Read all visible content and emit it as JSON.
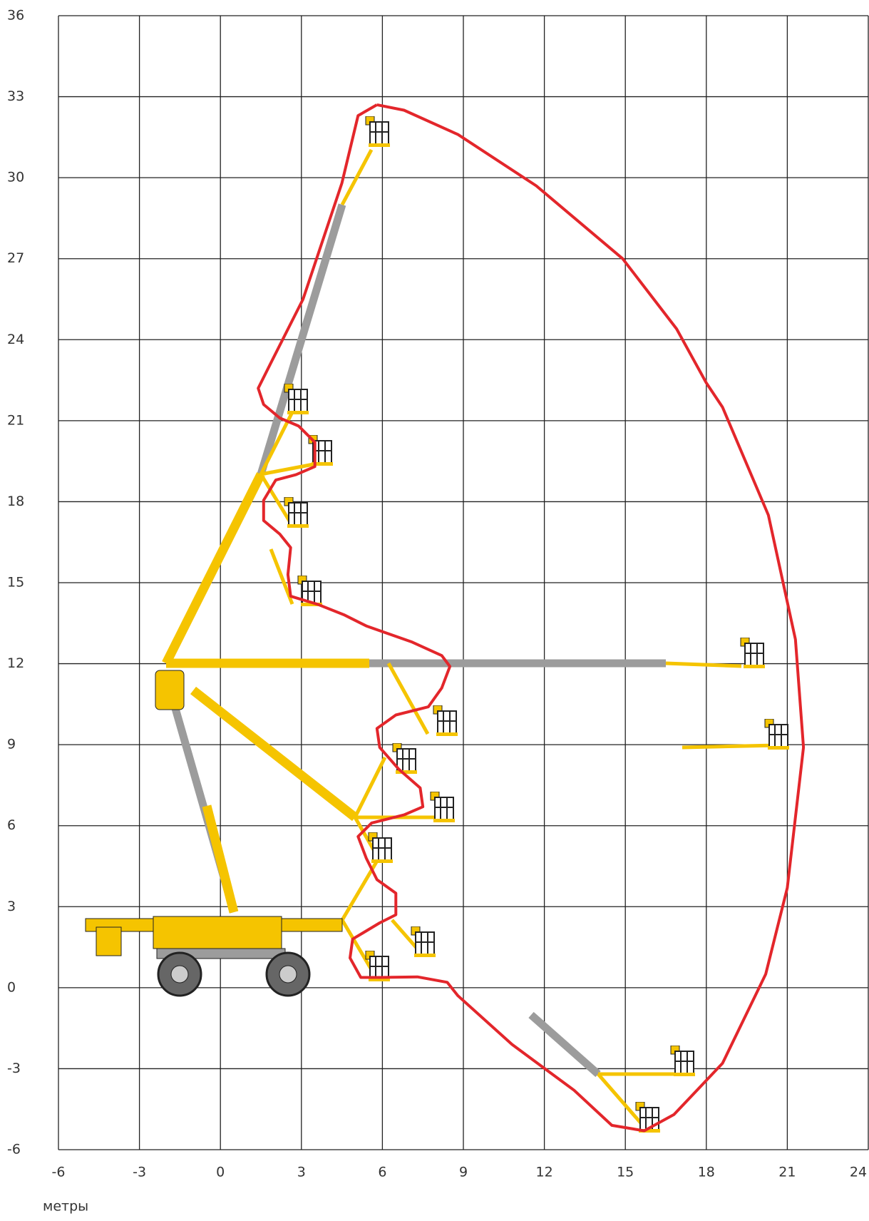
{
  "chart_data": {
    "type": "line",
    "xlabel": "метры",
    "x": [
      5.8,
      5.1,
      4.5,
      3.06,
      1.9,
      1.4,
      1.6,
      2.2,
      2.9,
      3.5,
      3.5,
      2.8,
      2.05,
      1.6,
      1.6,
      2.2,
      2.6,
      2.5,
      2.6,
      3.6,
      4.6,
      5.4,
      7.1,
      8.2,
      8.5,
      8.2,
      7.7,
      6.5,
      5.8,
      5.9,
      6.6,
      7.4,
      7.5,
      6.8,
      5.6,
      5.1,
      5.4,
      5.8,
      6.5,
      6.5,
      5.9,
      4.9,
      4.8,
      5.2,
      5.9,
      7.3,
      8.4,
      8.8,
      10.8,
      13.1,
      14.5,
      15.7,
      16.8,
      18.6,
      20.2,
      21.0,
      21.6,
      21.3,
      20.3,
      18.6,
      18.0,
      16.9,
      14.9,
      11.7,
      8.8,
      6.8,
      5.8
    ],
    "values": [
      32.7,
      32.3,
      29.8,
      25.5,
      23.2,
      22.2,
      21.6,
      21.1,
      20.8,
      20.2,
      19.3,
      19.0,
      18.8,
      18.05,
      17.3,
      16.8,
      16.3,
      15.3,
      14.5,
      14.2,
      13.8,
      13.4,
      12.8,
      12.3,
      11.9,
      11.1,
      10.4,
      10.1,
      9.6,
      8.9,
      8.1,
      7.4,
      6.7,
      6.4,
      6.1,
      5.6,
      4.8,
      4.0,
      3.5,
      2.7,
      2.4,
      1.8,
      1.1,
      0.38,
      0.38,
      0.4,
      0.2,
      -0.3,
      -2.1,
      -3.8,
      -5.1,
      -5.3,
      -4.7,
      -2.8,
      0.5,
      3.7,
      8.9,
      12.9,
      17.5,
      21.5,
      22.4,
      24.4,
      27.0,
      29.7,
      31.6,
      32.5,
      32.7
    ],
    "color": "#e3262b",
    "xlim": [
      -6,
      24
    ],
    "xticks": [
      -6,
      -3,
      0,
      3,
      6,
      9,
      12,
      15,
      18,
      21,
      24
    ],
    "ylim": [
      -6,
      36
    ],
    "yticks": [
      -6,
      -3,
      0,
      3,
      6,
      9,
      12,
      15,
      18,
      21,
      24,
      27,
      30,
      33,
      36
    ],
    "grid": true
  }
}
